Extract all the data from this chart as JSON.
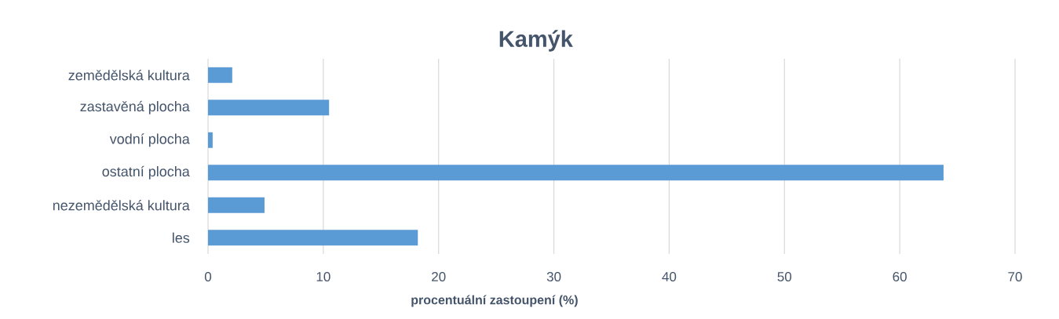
{
  "chart_data": {
    "type": "bar",
    "orientation": "horizontal",
    "title": "Kamýk",
    "xlabel": "procentuální zastoupení (%)",
    "categories": [
      "zemědělská kultura",
      "zastavěná plocha",
      "vodní plocha",
      "ostatní plocha",
      "nezemědělská kultura",
      "les"
    ],
    "values": [
      2.1,
      10.5,
      0.4,
      63.8,
      4.9,
      18.2
    ],
    "color": "#5b9bd5",
    "xlim": [
      0,
      70
    ],
    "xticks": [
      0,
      10,
      20,
      30,
      40,
      50,
      60,
      70
    ],
    "grid": "x"
  }
}
